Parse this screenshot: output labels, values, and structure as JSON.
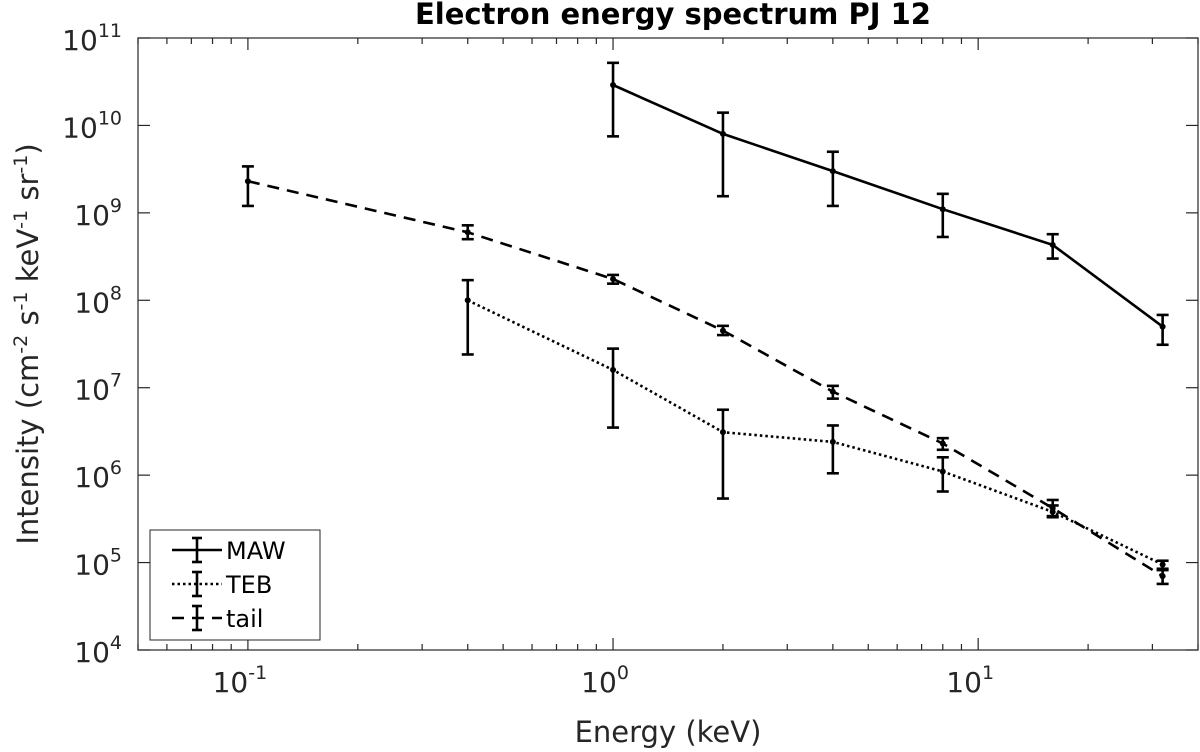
{
  "chart_data": {
    "type": "line",
    "title": "Electron energy spectrum PJ 12",
    "xlabel": "Energy (keV)",
    "ylabel_parts": {
      "prefix": "Intensity (cm",
      "exp1": "-2",
      "mid1": " s",
      "exp2": "-1",
      "mid2": " keV",
      "exp3": "-1",
      "mid3": " sr",
      "exp4": "-1",
      "suffix": ")"
    },
    "xscale": "log",
    "yscale": "log",
    "xlim": [
      0.05,
      40
    ],
    "ylim": [
      10000,
      100000000000
    ],
    "grid": false,
    "x_ticks": [
      {
        "value": 0.1,
        "base": "10",
        "exp": "-1"
      },
      {
        "value": 1,
        "base": "10",
        "exp": "0"
      },
      {
        "value": 10,
        "base": "10",
        "exp": "1"
      }
    ],
    "y_ticks": [
      {
        "value": 10000,
        "base": "10",
        "exp": "4"
      },
      {
        "value": 100000,
        "base": "10",
        "exp": "5"
      },
      {
        "value": 1000000,
        "base": "10",
        "exp": "6"
      },
      {
        "value": 10000000,
        "base": "10",
        "exp": "7"
      },
      {
        "value": 100000000,
        "base": "10",
        "exp": "8"
      },
      {
        "value": 1000000000,
        "base": "10",
        "exp": "9"
      },
      {
        "value": 10000000000,
        "base": "10",
        "exp": "10"
      },
      {
        "value": 100000000000,
        "base": "10",
        "exp": "11"
      }
    ],
    "legend_position": "bottom-left",
    "series": [
      {
        "name": "MAW",
        "style": "solid",
        "x": [
          1,
          2,
          4,
          8,
          16,
          32
        ],
        "y": [
          29000000000,
          8000000000,
          3000000000,
          1100000000,
          430000000,
          50000000
        ],
        "y_low": [
          7500000000,
          1550000000,
          1200000000,
          530000000,
          300000000,
          31000000
        ],
        "y_high": [
          52000000000,
          14000000000,
          5000000000,
          1650000000,
          570000000,
          68000000
        ]
      },
      {
        "name": "TEB",
        "style": "dotted",
        "x": [
          0.4,
          1,
          2,
          4,
          8,
          16,
          32
        ],
        "y": [
          100000000,
          16000000,
          3100000,
          2400000,
          1100000,
          380000,
          95000
        ],
        "y_low": [
          24000000,
          3500000,
          540000,
          1050000,
          650000,
          330000,
          85000
        ],
        "y_high": [
          170000000,
          28000000,
          5600000,
          3700000,
          1600000,
          450000,
          105000
        ]
      },
      {
        "name": "tail",
        "style": "dashed",
        "x": [
          0.1,
          0.4,
          1,
          2,
          4,
          8,
          16,
          32
        ],
        "y": [
          2300000000,
          600000000,
          175000000,
          45000000,
          9000000,
          2300000,
          420000,
          70000
        ],
        "y_low": [
          1200000000,
          500000000,
          155000000,
          40000000,
          7500000,
          1950000,
          340000,
          57000
        ],
        "y_high": [
          3400000000,
          720000000,
          195000000,
          51000000,
          10500000,
          2650000,
          520000,
          82000
        ]
      }
    ]
  }
}
